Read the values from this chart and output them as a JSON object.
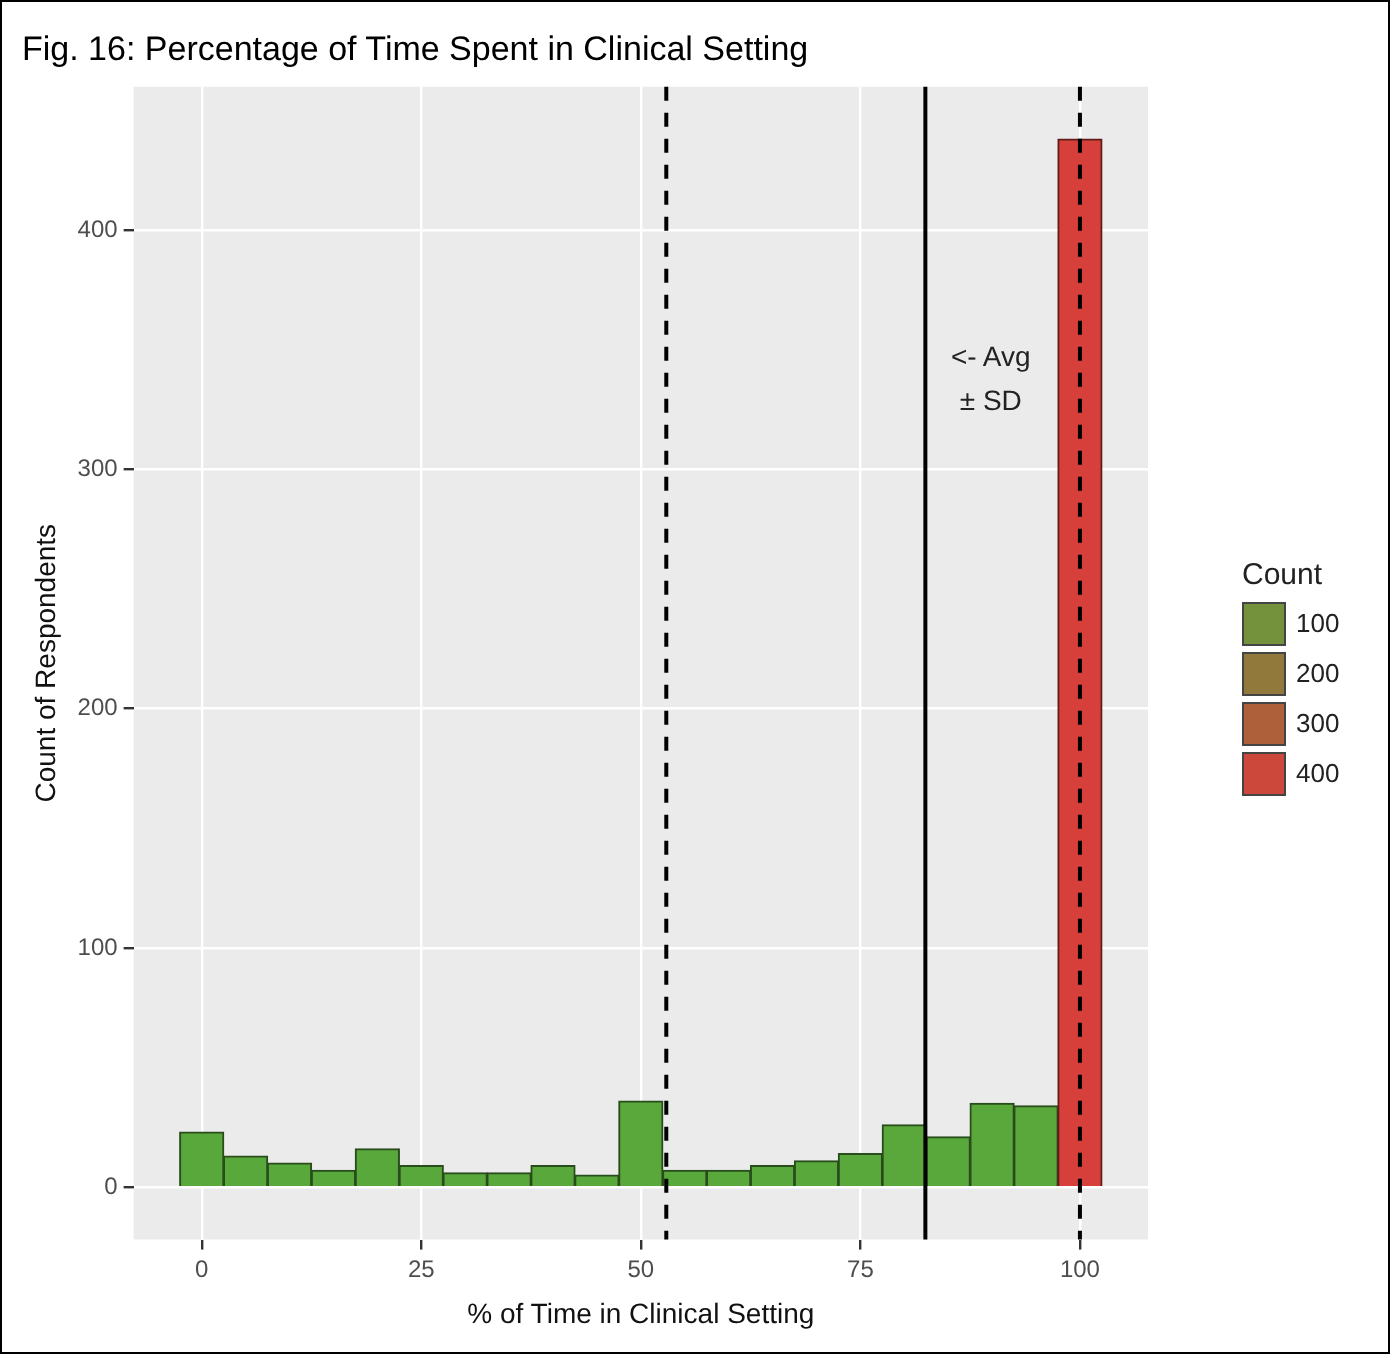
{
  "chart_data": {
    "type": "histogram",
    "title": "Fig. 16: Percentage of Time Spent in Clinical Setting",
    "xlabel": "% of Time in Clinical Setting",
    "ylabel": "Count of Respondents",
    "legend_title": "Count",
    "bins": [
      -2.5,
      2.5,
      7.5,
      12.5,
      17.5,
      22.5,
      27.5,
      32.5,
      37.5,
      42.5,
      47.5,
      52.5,
      57.5,
      62.5,
      67.5,
      72.5,
      77.5,
      82.5,
      87.5,
      92.5,
      97.5,
      102.5
    ],
    "values": [
      23,
      13,
      10,
      7,
      16,
      9,
      6,
      6,
      9,
      5,
      36,
      7,
      7,
      9,
      11,
      14,
      26,
      21,
      35,
      34,
      438
    ],
    "colors": [
      "#59a83b",
      "#59a83b",
      "#59a83b",
      "#59a83b",
      "#59a83b",
      "#59a83b",
      "#59a83b",
      "#59a83b",
      "#59a83b",
      "#59a83b",
      "#5aa83b",
      "#59a83b",
      "#59a83b",
      "#59a83b",
      "#59a83b",
      "#59a83b",
      "#5aa83b",
      "#59a83b",
      "#5aa83b",
      "#5aa83b",
      "#d63f3a"
    ],
    "cticks": [
      100,
      200,
      300,
      400
    ],
    "xlim": [
      -7.75,
      107.75
    ],
    "xticks": [
      0,
      25,
      50,
      75,
      100
    ],
    "ylim": [
      -21.9,
      459.9
    ],
    "yticks": [
      0,
      100,
      200,
      300,
      400
    ],
    "grid": true,
    "ref_lines": [
      {
        "axis": "x",
        "value": 82.4,
        "line_style": "solid"
      },
      {
        "axis": "x",
        "value": 52.9,
        "line_style": "dashed"
      },
      {
        "axis": "x",
        "value": 100,
        "line_style": "dashed"
      }
    ],
    "annotations": [
      "<- Avg\n± SD"
    ]
  }
}
